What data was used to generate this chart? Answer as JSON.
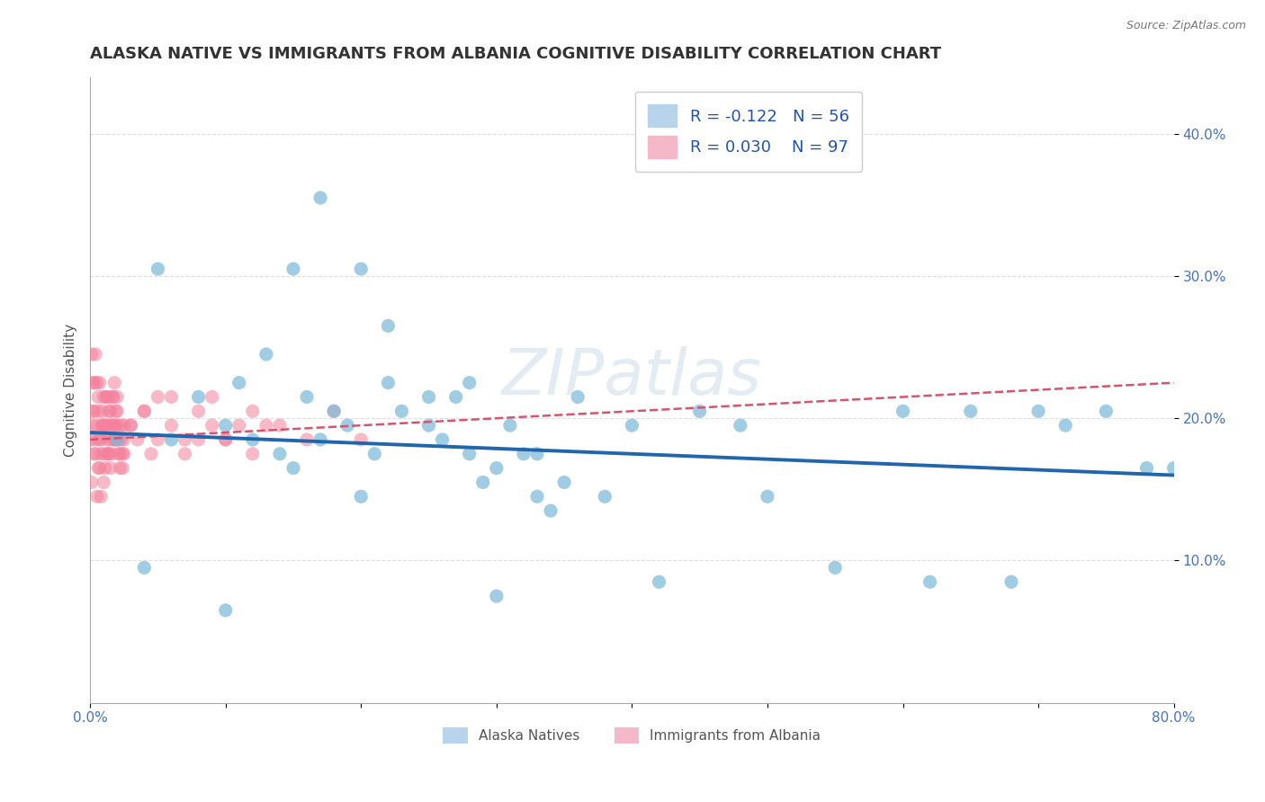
{
  "title": "ALASKA NATIVE VS IMMIGRANTS FROM ALBANIA COGNITIVE DISABILITY CORRELATION CHART",
  "source_text": "Source: ZipAtlas.com",
  "ylabel": "Cognitive Disability",
  "xlim": [
    0.0,
    0.8
  ],
  "ylim": [
    0.0,
    0.44
  ],
  "xtick_positions": [
    0.0,
    0.1,
    0.2,
    0.3,
    0.4,
    0.5,
    0.6,
    0.7,
    0.8
  ],
  "xtick_labels": [
    "0.0%",
    "",
    "",
    "",
    "",
    "",
    "",
    "",
    "80.0%"
  ],
  "ytick_positions": [
    0.1,
    0.2,
    0.3,
    0.4
  ],
  "ytick_labels": [
    "10.0%",
    "20.0%",
    "30.0%",
    "40.0%"
  ],
  "scatter_alaska": {
    "color": "#7ab8d9",
    "edgecolor": "#5a9fc0",
    "alpha": 0.7,
    "size": 120,
    "x": [
      0.02,
      0.04,
      0.06,
      0.08,
      0.1,
      0.11,
      0.12,
      0.13,
      0.14,
      0.15,
      0.16,
      0.17,
      0.18,
      0.19,
      0.2,
      0.21,
      0.22,
      0.23,
      0.25,
      0.26,
      0.27,
      0.28,
      0.29,
      0.3,
      0.31,
      0.32,
      0.33,
      0.34,
      0.35,
      0.36,
      0.38,
      0.4,
      0.42,
      0.45,
      0.48,
      0.5,
      0.55,
      0.6,
      0.62,
      0.65,
      0.68,
      0.7,
      0.72,
      0.75,
      0.78,
      0.8,
      0.15,
      0.2,
      0.25,
      0.1,
      0.05,
      0.3,
      0.17,
      0.22,
      0.28,
      0.33
    ],
    "y": [
      0.185,
      0.095,
      0.185,
      0.215,
      0.195,
      0.225,
      0.185,
      0.245,
      0.175,
      0.165,
      0.215,
      0.185,
      0.205,
      0.195,
      0.145,
      0.175,
      0.225,
      0.205,
      0.195,
      0.185,
      0.215,
      0.175,
      0.155,
      0.165,
      0.195,
      0.175,
      0.145,
      0.135,
      0.155,
      0.215,
      0.145,
      0.195,
      0.085,
      0.205,
      0.195,
      0.145,
      0.095,
      0.205,
      0.085,
      0.205,
      0.085,
      0.205,
      0.195,
      0.205,
      0.165,
      0.165,
      0.305,
      0.305,
      0.215,
      0.065,
      0.305,
      0.075,
      0.355,
      0.265,
      0.225,
      0.175
    ]
  },
  "scatter_albania": {
    "color": "#f4819d",
    "edgecolor": "#e05070",
    "alpha": 0.55,
    "size": 120,
    "x": [
      0.001,
      0.002,
      0.003,
      0.004,
      0.005,
      0.006,
      0.007,
      0.008,
      0.009,
      0.01,
      0.011,
      0.012,
      0.013,
      0.014,
      0.015,
      0.016,
      0.017,
      0.018,
      0.019,
      0.02,
      0.021,
      0.022,
      0.023,
      0.024,
      0.025,
      0.001,
      0.002,
      0.003,
      0.004,
      0.005,
      0.006,
      0.007,
      0.008,
      0.009,
      0.01,
      0.011,
      0.012,
      0.013,
      0.014,
      0.015,
      0.016,
      0.017,
      0.018,
      0.019,
      0.02,
      0.021,
      0.022,
      0.023,
      0.024,
      0.025,
      0.001,
      0.002,
      0.003,
      0.004,
      0.005,
      0.006,
      0.007,
      0.008,
      0.009,
      0.01,
      0.011,
      0.012,
      0.013,
      0.014,
      0.015,
      0.016,
      0.017,
      0.018,
      0.019,
      0.02,
      0.025,
      0.03,
      0.035,
      0.04,
      0.045,
      0.05,
      0.06,
      0.07,
      0.08,
      0.09,
      0.1,
      0.12,
      0.14,
      0.16,
      0.18,
      0.2,
      0.03,
      0.04,
      0.05,
      0.06,
      0.07,
      0.08,
      0.09,
      0.1,
      0.11,
      0.12,
      0.13
    ],
    "y": [
      0.185,
      0.205,
      0.225,
      0.175,
      0.195,
      0.215,
      0.165,
      0.185,
      0.205,
      0.155,
      0.195,
      0.215,
      0.175,
      0.205,
      0.185,
      0.195,
      0.215,
      0.225,
      0.185,
      0.195,
      0.175,
      0.165,
      0.185,
      0.175,
      0.195,
      0.245,
      0.225,
      0.205,
      0.245,
      0.225,
      0.205,
      0.225,
      0.175,
      0.195,
      0.215,
      0.165,
      0.195,
      0.175,
      0.215,
      0.165,
      0.175,
      0.195,
      0.185,
      0.205,
      0.215,
      0.185,
      0.175,
      0.195,
      0.165,
      0.185,
      0.155,
      0.195,
      0.175,
      0.185,
      0.145,
      0.165,
      0.185,
      0.145,
      0.195,
      0.175,
      0.195,
      0.215,
      0.185,
      0.175,
      0.205,
      0.195,
      0.215,
      0.185,
      0.195,
      0.205,
      0.175,
      0.195,
      0.185,
      0.205,
      0.175,
      0.185,
      0.215,
      0.175,
      0.185,
      0.215,
      0.185,
      0.175,
      0.195,
      0.185,
      0.205,
      0.185,
      0.195,
      0.205,
      0.215,
      0.195,
      0.185,
      0.205,
      0.195,
      0.185,
      0.195,
      0.205,
      0.195
    ]
  },
  "trendline_alaska": {
    "color": "#2166ac",
    "linewidth": 2.8,
    "x_start": 0.0,
    "x_end": 0.8,
    "y_start": 0.19,
    "y_end": 0.16
  },
  "trendline_albania": {
    "color": "#d6546e",
    "linewidth": 1.8,
    "linestyle": "--",
    "x_start": 0.0,
    "x_end": 0.8,
    "y_start": 0.185,
    "y_end": 0.225
  },
  "watermark": "ZIPatlas",
  "background_color": "#ffffff",
  "grid_color": "#c8c8c8",
  "grid_linestyle": "--",
  "grid_alpha": 0.6,
  "title_fontsize": 13,
  "axis_label_fontsize": 11,
  "tick_fontsize": 11,
  "tick_color": "#4472c4"
}
